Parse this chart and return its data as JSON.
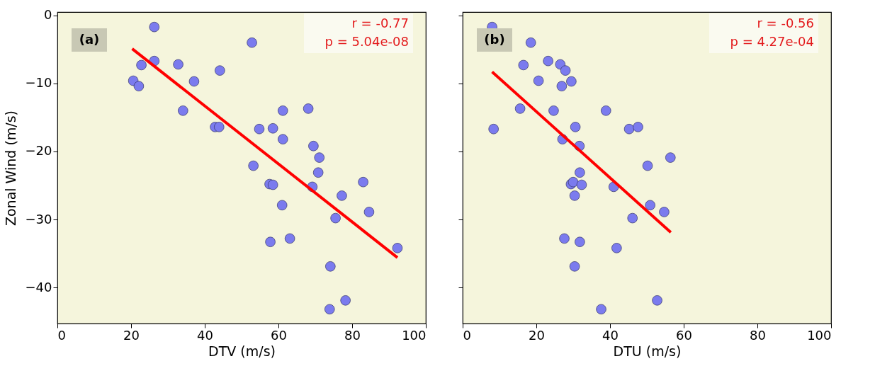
{
  "chart_data": [
    {
      "type": "scatter",
      "xlabel": "DTV (m/s)",
      "ylabel": "Zonal Wind (m/s)",
      "xlim": [
        0,
        100
      ],
      "ylim": [
        -45.3,
        0.5
      ],
      "xticks": [
        0,
        20,
        40,
        60,
        80,
        100
      ],
      "yticks": [
        -40,
        -30,
        -20,
        -10,
        0
      ],
      "grid": false,
      "annotations": [
        "(a)",
        "r = -0.77",
        "p = 5.04e-08"
      ],
      "series": [
        {
          "marker": "circle",
          "color": "#7b7bee",
          "x": [
            26.3,
            52.8,
            22.8,
            26.3,
            32.8,
            44.1,
            20.6,
            22.1,
            37.1,
            34.1,
            61.2,
            68.1,
            42.8,
            43.9,
            54.8,
            58.5,
            61.2,
            69.5,
            71.1,
            53.2,
            70.8,
            57.6,
            58.5,
            69.2,
            83.0,
            77.2,
            61.0,
            84.6,
            75.5,
            57.8,
            63.1,
            92.3,
            74.1,
            78.2,
            73.9
          ],
          "values": [
            -1.7,
            -4.0,
            -7.3,
            -6.7,
            -7.2,
            -8.1,
            -9.6,
            -10.4,
            -9.7,
            -14.0,
            -14.0,
            -13.7,
            -16.4,
            -16.4,
            -16.7,
            -16.6,
            -18.2,
            -19.2,
            -20.9,
            -22.1,
            -23.1,
            -24.8,
            -24.9,
            -25.2,
            -24.5,
            -26.5,
            -27.9,
            -28.9,
            -29.8,
            -33.3,
            -32.8,
            -34.2,
            -36.9,
            -41.9,
            -43.2
          ]
        },
        {
          "type": "line",
          "color": "#ff0000",
          "line_style": "solid",
          "x": [
            20.3,
            92.3
          ],
          "values": [
            -4.9,
            -35.6
          ]
        }
      ]
    },
    {
      "type": "scatter",
      "xlabel": "DTU (m/s)",
      "xlim": [
        0,
        100
      ],
      "ylim": [
        -45.3,
        0.5
      ],
      "xticks": [
        0,
        20,
        40,
        60,
        80,
        100
      ],
      "yticks": [
        -40,
        -30,
        -20,
        -10,
        0
      ],
      "tick_labels": "x",
      "grid": false,
      "annotations": [
        "(b)",
        "r = -0.56",
        "p = 4.27e-04"
      ],
      "series": [
        {
          "marker": "circle",
          "color": "#7b7bee",
          "x": [
            8.0,
            18.5,
            16.5,
            23.2,
            26.5,
            27.9,
            20.6,
            26.9,
            29.5,
            15.6,
            24.7,
            38.9,
            8.4,
            30.6,
            45.2,
            47.6,
            27.1,
            31.7,
            56.4,
            50.2,
            31.8,
            29.4,
            30.0,
            32.3,
            41.0,
            30.4,
            50.9,
            54.7,
            46.1,
            27.6,
            31.8,
            41.8,
            30.4,
            52.8,
            37.6
          ],
          "values": [
            -1.7,
            -4.0,
            -7.3,
            -6.7,
            -7.2,
            -8.1,
            -9.6,
            -10.4,
            -9.7,
            -13.7,
            -14.0,
            -14.0,
            -16.7,
            -16.4,
            -16.7,
            -16.4,
            -18.2,
            -19.2,
            -20.9,
            -22.1,
            -23.1,
            -24.8,
            -24.5,
            -24.9,
            -25.2,
            -26.5,
            -27.9,
            -28.9,
            -29.8,
            -32.8,
            -33.3,
            -34.2,
            -36.9,
            -41.9,
            -43.2
          ]
        },
        {
          "type": "line",
          "color": "#ff0000",
          "line_style": "solid",
          "x": [
            8.0,
            56.5
          ],
          "values": [
            -8.3,
            -31.9
          ]
        }
      ]
    }
  ]
}
